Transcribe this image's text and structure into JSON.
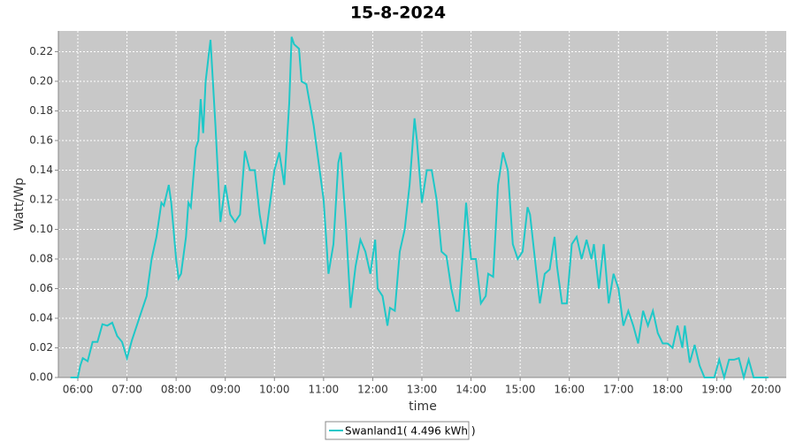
{
  "chart_data": {
    "type": "line",
    "title": "15-8-2024",
    "x_label": "time",
    "y_label": "Watt/Wp",
    "x": [
      5.85,
      6.0,
      6.05,
      6.1,
      6.2,
      6.3,
      6.4,
      6.5,
      6.6,
      6.7,
      6.8,
      6.9,
      7.0,
      7.1,
      7.3,
      7.4,
      7.5,
      7.6,
      7.7,
      7.75,
      7.85,
      7.9,
      8.0,
      8.05,
      8.1,
      8.2,
      8.25,
      8.3,
      8.4,
      8.45,
      8.5,
      8.55,
      8.6,
      8.7,
      8.8,
      8.9,
      9.0,
      9.1,
      9.2,
      9.3,
      9.4,
      9.5,
      9.6,
      9.7,
      9.8,
      9.9,
      10.0,
      10.1,
      10.2,
      10.3,
      10.35,
      10.4,
      10.5,
      10.55,
      10.65,
      10.8,
      11.0,
      11.1,
      11.2,
      11.3,
      11.35,
      11.45,
      11.55,
      11.65,
      11.75,
      11.85,
      11.95,
      12.05,
      12.1,
      12.2,
      12.3,
      12.35,
      12.45,
      12.55,
      12.65,
      12.75,
      12.85,
      12.9,
      13.0,
      13.1,
      13.2,
      13.3,
      13.4,
      13.5,
      13.6,
      13.7,
      13.75,
      13.85,
      13.9,
      14.0,
      14.1,
      14.2,
      14.3,
      14.35,
      14.45,
      14.55,
      14.65,
      14.75,
      14.85,
      14.95,
      15.05,
      15.15,
      15.2,
      15.3,
      15.4,
      15.5,
      15.6,
      15.7,
      15.75,
      15.85,
      15.95,
      16.05,
      16.15,
      16.25,
      16.35,
      16.45,
      16.5,
      16.6,
      16.7,
      16.8,
      16.9,
      17.0,
      17.1,
      17.2,
      17.3,
      17.4,
      17.5,
      17.6,
      17.7,
      17.8,
      17.9,
      18.0,
      18.1,
      18.2,
      18.3,
      18.35,
      18.45,
      18.55,
      18.65,
      18.75,
      18.95,
      19.05,
      19.15,
      19.25,
      19.35,
      19.45,
      19.55,
      19.65,
      19.75,
      19.95,
      20.05
    ],
    "series": [
      {
        "name": "Swanland1( 4.496 kWh )",
        "color": "#1ec8c8",
        "values": [
          0,
          0,
          0.008,
          0.013,
          0.011,
          0.024,
          0.024,
          0.036,
          0.035,
          0.037,
          0.028,
          0.024,
          0.013,
          0.025,
          0.045,
          0.055,
          0.08,
          0.095,
          0.118,
          0.116,
          0.13,
          0.118,
          0.08,
          0.067,
          0.07,
          0.095,
          0.118,
          0.115,
          0.155,
          0.16,
          0.188,
          0.165,
          0.2,
          0.228,
          0.17,
          0.105,
          0.13,
          0.11,
          0.105,
          0.11,
          0.153,
          0.14,
          0.14,
          0.11,
          0.09,
          0.115,
          0.14,
          0.152,
          0.13,
          0.185,
          0.23,
          0.225,
          0.222,
          0.2,
          0.198,
          0.17,
          0.12,
          0.07,
          0.09,
          0.145,
          0.152,
          0.105,
          0.047,
          0.075,
          0.093,
          0.085,
          0.07,
          0.093,
          0.06,
          0.055,
          0.035,
          0.047,
          0.045,
          0.085,
          0.1,
          0.13,
          0.175,
          0.16,
          0.118,
          0.14,
          0.14,
          0.12,
          0.085,
          0.082,
          0.06,
          0.045,
          0.045,
          0.092,
          0.118,
          0.08,
          0.08,
          0.05,
          0.055,
          0.07,
          0.068,
          0.13,
          0.152,
          0.14,
          0.09,
          0.08,
          0.085,
          0.115,
          0.11,
          0.08,
          0.05,
          0.07,
          0.073,
          0.095,
          0.075,
          0.05,
          0.05,
          0.09,
          0.095,
          0.08,
          0.093,
          0.08,
          0.09,
          0.06,
          0.09,
          0.05,
          0.07,
          0.06,
          0.035,
          0.045,
          0.035,
          0.023,
          0.045,
          0.035,
          0.045,
          0.03,
          0.023,
          0.023,
          0.02,
          0.035,
          0.02,
          0.035,
          0.01,
          0.022,
          0.008,
          0,
          0,
          0.012,
          0,
          0.012,
          0.012,
          0.013,
          0,
          0.012,
          0,
          0,
          0
        ]
      }
    ],
    "xlim": [
      5.604,
      20.414
    ],
    "xticks": [
      {
        "value": 6,
        "label": "06:00"
      },
      {
        "value": 7,
        "label": "07:00"
      },
      {
        "value": 8,
        "label": "08:00"
      },
      {
        "value": 9,
        "label": "09:00"
      },
      {
        "value": 10,
        "label": "10:00"
      },
      {
        "value": 11,
        "label": "11:00"
      },
      {
        "value": 12,
        "label": "12:00"
      },
      {
        "value": 13,
        "label": "13:00"
      },
      {
        "value": 14,
        "label": "14:00"
      },
      {
        "value": 15,
        "label": "15:00"
      },
      {
        "value": 16,
        "label": "16:00"
      },
      {
        "value": 17,
        "label": "17:00"
      },
      {
        "value": 18,
        "label": "18:00"
      },
      {
        "value": 19,
        "label": "19:00"
      },
      {
        "value": 20,
        "label": "20:00"
      }
    ],
    "ylim": [
      0,
      0.234
    ],
    "yticks": [
      {
        "value": 0,
        "label": "0.00"
      },
      {
        "value": 0.02,
        "label": "0.02"
      },
      {
        "value": 0.04,
        "label": "0.04"
      },
      {
        "value": 0.06,
        "label": "0.06"
      },
      {
        "value": 0.08,
        "label": "0.08"
      },
      {
        "value": 0.1,
        "label": "0.10"
      },
      {
        "value": 0.12,
        "label": "0.12"
      },
      {
        "value": 0.14,
        "label": "0.14"
      },
      {
        "value": 0.16,
        "label": "0.16"
      },
      {
        "value": 0.18,
        "label": "0.18"
      },
      {
        "value": 0.2,
        "label": "0.20"
      },
      {
        "value": 0.22,
        "label": "0.22"
      }
    ],
    "grid": true
  }
}
